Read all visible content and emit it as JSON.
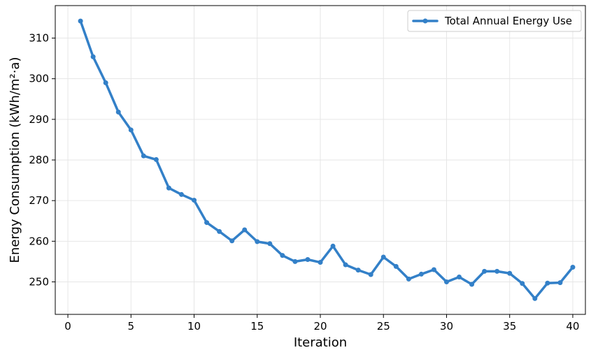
{
  "chart_data": {
    "type": "line",
    "xlabel": "Iteration",
    "ylabel": "Energy Consumption (kWh/m²·a)",
    "xlim": [
      -1,
      41
    ],
    "ylim": [
      242,
      318
    ],
    "xticks": [
      0,
      5,
      10,
      15,
      20,
      25,
      30,
      35,
      40
    ],
    "yticks": [
      250,
      260,
      270,
      280,
      290,
      300,
      310
    ],
    "grid": true,
    "legend_position": "top-right",
    "series": [
      {
        "name": "Total Annual Energy Use",
        "color": "#3380c8",
        "marker": "circle",
        "x": [
          1,
          2,
          3,
          4,
          5,
          6,
          7,
          8,
          9,
          10,
          11,
          12,
          13,
          14,
          15,
          16,
          17,
          18,
          19,
          20,
          21,
          22,
          23,
          24,
          25,
          26,
          27,
          28,
          29,
          30,
          31,
          32,
          33,
          34,
          35,
          36,
          37,
          38,
          39,
          40
        ],
        "values": [
          314.2,
          305.4,
          299.0,
          291.8,
          287.4,
          281.0,
          280.1,
          273.1,
          271.5,
          270.1,
          264.6,
          262.4,
          260.1,
          262.8,
          259.9,
          259.4,
          256.5,
          255.0,
          255.5,
          254.8,
          258.8,
          254.2,
          252.9,
          251.8,
          256.1,
          253.8,
          250.7,
          251.9,
          253.0,
          250.0,
          251.2,
          249.4,
          252.6,
          252.6,
          252.1,
          249.6,
          245.9,
          249.7,
          249.8,
          253.6
        ]
      }
    ]
  }
}
